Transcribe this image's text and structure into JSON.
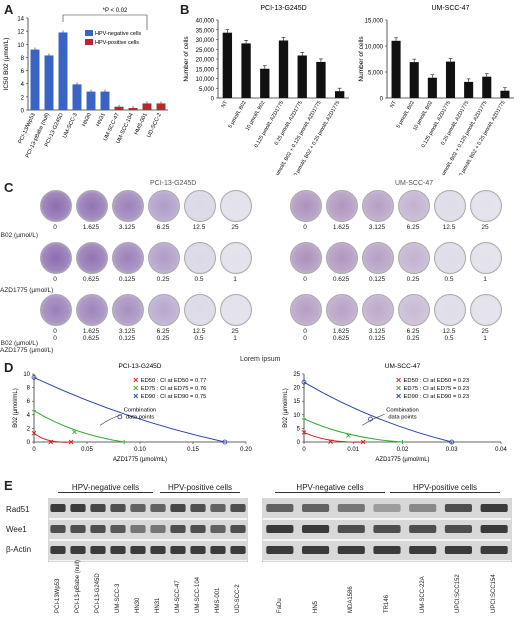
{
  "panels": {
    "A": "A",
    "B": "B",
    "C": "C",
    "D": "D",
    "E": "E"
  },
  "panelA": {
    "significance": "*P < 0.02",
    "ylabel": "IC50 B02 (µmol/L)",
    "legend": [
      "HPV-negative cells",
      "HPV-positive cells"
    ],
    "colors": {
      "neg": "#3a64c4",
      "pos": "#b5292e"
    },
    "chart_data": {
      "type": "bar",
      "categories": [
        "PCI-13/Wp53",
        "PCI-13-pBabe (null)",
        "PCI-13-G245D",
        "UM-SCC-3",
        "HN30",
        "HN31",
        "UM-SCC-47",
        "UM-SCC-104",
        "HMS-001",
        "UD-SCC-2"
      ],
      "values": [
        9.2,
        8.3,
        11.8,
        3.9,
        2.8,
        2.8,
        0.5,
        0.3,
        1.0,
        1.0
      ],
      "group": [
        "neg",
        "neg",
        "neg",
        "neg",
        "neg",
        "neg",
        "pos",
        "pos",
        "pos",
        "pos"
      ],
      "ylim": [
        0,
        14
      ],
      "yticks": [
        "0",
        "2",
        "4",
        "6",
        "8",
        "10",
        "12",
        "14"
      ]
    }
  },
  "panelB": {
    "ylabel": "Number of cells",
    "charts": [
      {
        "title": "PCI-13-G245D",
        "chart_data": {
          "type": "bar",
          "categories": [
            "NT",
            "5 µmol/L B02",
            "10 µmol/L B02",
            "0.125 µmol/L AZD1775",
            "0.25 µmol/L AZD1775",
            "5 µmol/L B02 + 0.125 µmol/L AZD1775",
            "10 µmol/L B02 + 0.25 µmol/L AZD1775"
          ],
          "values": [
            33500,
            28000,
            15000,
            29500,
            21800,
            18500,
            3500
          ],
          "ylim": [
            0,
            40000
          ],
          "yticks": [
            "0",
            "5,000",
            "10,000",
            "15,000",
            "20,000",
            "25,000",
            "30,000",
            "35,000",
            "40,000"
          ]
        }
      },
      {
        "title": "UM-SCC-47",
        "chart_data": {
          "type": "bar",
          "categories": [
            "NT",
            "5 µmol/L B02",
            "10 µmol/L B02",
            "0.125 µmol/L AZD1775",
            "0.25 µmol/L AZD1775",
            "5 µmol/L B02 + 0.125 µmol/L AZD1775",
            "10 µmol/L B02 + 0.25 µmol/L AZD1775"
          ],
          "values": [
            11000,
            6900,
            3900,
            7000,
            3100,
            4100,
            1400
          ],
          "ylim": [
            0,
            15000
          ],
          "yticks": [
            "0",
            "5,000",
            "10,000",
            "15,000"
          ]
        }
      }
    ]
  },
  "panelC": {
    "titles": [
      "PCI-13-G245D",
      "UM-SCC-47"
    ],
    "row_labels": [
      "B02 (µmol/L)",
      "AZD1775 (µmol/L)",
      "B02 (µmol/L)",
      "AZD1775 (µmol/L)"
    ],
    "b02_values": [
      "0",
      "1.625",
      "3.125",
      "6.25",
      "12.5",
      "25"
    ],
    "azd_values": [
      "0",
      "0.625",
      "0.125",
      "0.25",
      "0.5",
      "1"
    ],
    "caption": "Lorem ipsum"
  },
  "panelD": {
    "charts": [
      {
        "title": "PCI-13-G245D",
        "legend": [
          "ED50 : CI at ED50 = 0.77",
          "ED75 : CI at ED75 = 0.76",
          "ED90 : CI at ED90 = 0.75"
        ],
        "annotation": "Combination data points",
        "xlabel": "AZD1775 (µmol/mL)",
        "ylabel": "B02 (µmol/mL)",
        "xticks": [
          "0",
          "0.05",
          "0.10",
          "0.15",
          "0.20"
        ],
        "yticks": [
          "0",
          "2",
          "4",
          "6",
          "8",
          "10"
        ],
        "chart_data": {
          "type": "line",
          "xlim": [
            0,
            0.2
          ],
          "ylim": [
            0,
            10
          ],
          "series": [
            {
              "name": "ED50",
              "color": "#d62020",
              "x": [
                0,
                0.035
              ],
              "y": [
                1.3,
                0
              ]
            },
            {
              "name": "ED75",
              "color": "#3aa83a",
              "x": [
                0,
                0.085
              ],
              "y": [
                4.6,
                0
              ]
            },
            {
              "name": "ED90",
              "color": "#2c44a8",
              "x": [
                0,
                0.18
              ],
              "y": [
                9.5,
                0
              ]
            }
          ]
        }
      },
      {
        "title": "UM-SCC-47",
        "legend": [
          "ED50 : CI at ED50 = 0.23",
          "ED75 : CI at ED75 = 0.23",
          "ED90 : CI at ED90 = 0.23"
        ],
        "annotation": "Combination data points",
        "xlabel": "AZD1775 (µmol/mL)",
        "ylabel": "B02 (µmol/mL)",
        "xticks": [
          "0",
          "0.01",
          "0.02",
          "0.03",
          "0.04"
        ],
        "yticks": [
          "0",
          "5",
          "10",
          "15",
          "20",
          "25"
        ],
        "chart_data": {
          "type": "line",
          "xlim": [
            0,
            0.04
          ],
          "ylim": [
            0,
            25
          ],
          "series": [
            {
              "name": "ED50",
              "color": "#d62020",
              "x": [
                0,
                0.012
              ],
              "y": [
                3.5,
                0
              ]
            },
            {
              "name": "ED75",
              "color": "#3aa83a",
              "x": [
                0,
                0.02
              ],
              "y": [
                8.5,
                0
              ]
            },
            {
              "name": "ED90",
              "color": "#2c44a8",
              "x": [
                0,
                0.03
              ],
              "y": [
                22,
                0
              ]
            }
          ]
        }
      }
    ]
  },
  "panelE": {
    "headers_left": [
      "HPV-negative cells",
      "HPV-positive cells"
    ],
    "headers_right": [
      "HPV-negative cells",
      "HPV-positive cells"
    ],
    "proteins": [
      "Rad51",
      "Wee1",
      "β-Actin"
    ],
    "lanes_left": [
      "PCI-13Wp53",
      "PCI-13-pBabe (null)",
      "PCI-13-G245D",
      "UM-SCC-3",
      "HN30",
      "HN31",
      "UM-SCC-47",
      "UM-SCC-104",
      "HMS-001",
      "UD-SCC-2"
    ],
    "lanes_right": [
      "FaDu",
      "HN5",
      "MDA1586",
      "TR146",
      "UM-SCC-22A",
      "UPCI:SCC152",
      "UPCI:SCC154"
    ]
  }
}
